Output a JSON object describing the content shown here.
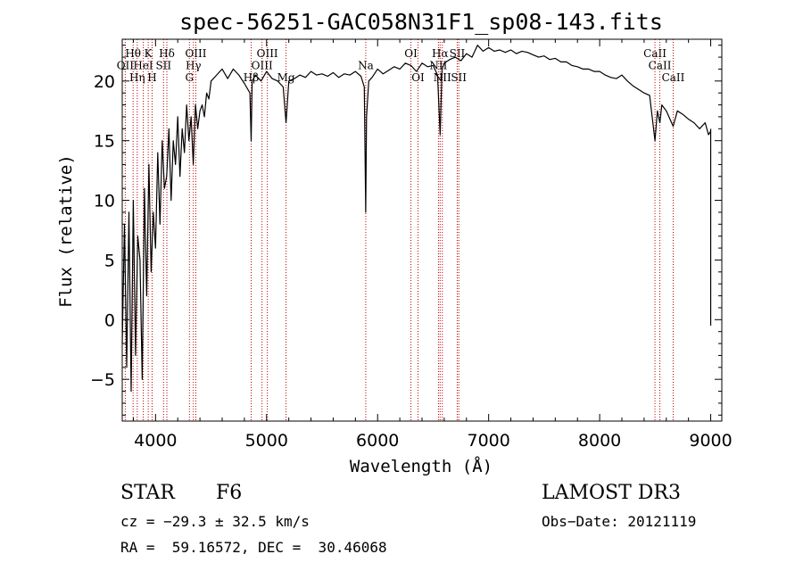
{
  "chart_data": {
    "type": "line",
    "title": "spec-56251-GAC058N31F1_sp08-143.fits",
    "xlabel": "Wavelength (Å)",
    "ylabel": "Flux (relative)",
    "xlim": [
      3700,
      9100
    ],
    "ylim": [
      -8.5,
      23.5
    ],
    "xticks": [
      "4000",
      "5000",
      "6000",
      "7000",
      "8000",
      "9000"
    ],
    "yticks": [
      "−5",
      "0",
      "5",
      "10",
      "15",
      "20"
    ],
    "xtick_values": [
      4000,
      5000,
      6000,
      7000,
      8000,
      9000
    ],
    "ytick_values": [
      -5,
      0,
      5,
      10,
      15,
      20
    ],
    "series": [
      {
        "name": "spectrum",
        "x": [
          3700,
          3720,
          3740,
          3760,
          3780,
          3800,
          3820,
          3840,
          3860,
          3880,
          3900,
          3920,
          3940,
          3960,
          3980,
          4000,
          4020,
          4040,
          4060,
          4080,
          4100,
          4120,
          4140,
          4160,
          4180,
          4200,
          4220,
          4240,
          4260,
          4280,
          4300,
          4320,
          4340,
          4360,
          4380,
          4400,
          4420,
          4440,
          4460,
          4480,
          4500,
          4550,
          4600,
          4650,
          4700,
          4750,
          4800,
          4850,
          4861,
          4870,
          4900,
          4950,
          5000,
          5050,
          5100,
          5150,
          5175,
          5200,
          5250,
          5300,
          5350,
          5400,
          5450,
          5500,
          5550,
          5600,
          5650,
          5700,
          5750,
          5800,
          5850,
          5880,
          5893,
          5900,
          5920,
          5950,
          6000,
          6050,
          6100,
          6150,
          6200,
          6250,
          6300,
          6350,
          6400,
          6450,
          6500,
          6540,
          6563,
          6580,
          6600,
          6650,
          6700,
          6750,
          6800,
          6850,
          6900,
          6950,
          7000,
          7050,
          7100,
          7150,
          7200,
          7250,
          7300,
          7350,
          7400,
          7450,
          7500,
          7550,
          7600,
          7650,
          7700,
          7750,
          7800,
          7850,
          7900,
          7950,
          8000,
          8050,
          8100,
          8150,
          8200,
          8250,
          8300,
          8350,
          8400,
          8450,
          8498,
          8520,
          8542,
          8560,
          8600,
          8662,
          8700,
          8750,
          8800,
          8850,
          8900,
          8950,
          8980,
          9000
        ],
        "y": [
          -2,
          8,
          -4,
          9,
          -6,
          10,
          -3,
          7,
          5,
          -5,
          11,
          2,
          13,
          4,
          9,
          6,
          14,
          8,
          15,
          11,
          12,
          16,
          10,
          15,
          13,
          17,
          12,
          16,
          14,
          18,
          15,
          17,
          13,
          18,
          16,
          17.5,
          18,
          17,
          19,
          18.5,
          20,
          20.5,
          21,
          20.2,
          21,
          20.5,
          19.8,
          19,
          15,
          20,
          20.5,
          20,
          20.8,
          20.2,
          20,
          19.5,
          16.5,
          20,
          20.2,
          20.5,
          20.3,
          20.8,
          20.5,
          20.6,
          20.4,
          20.7,
          20.3,
          20.6,
          20.5,
          20.8,
          20.4,
          19.5,
          9,
          17,
          20,
          20.3,
          21,
          20.6,
          20.9,
          21.2,
          21,
          21.5,
          21.3,
          20.8,
          21.5,
          21.2,
          21.3,
          20.5,
          15.5,
          21,
          21.5,
          21.8,
          22,
          21.7,
          22.3,
          22,
          23,
          22.5,
          22.8,
          22.5,
          22.6,
          22.4,
          22.6,
          22.3,
          22.5,
          22.4,
          22.2,
          22,
          22.1,
          21.8,
          21.9,
          21.6,
          21.6,
          21.3,
          21.2,
          21,
          21,
          20.8,
          20.8,
          20.5,
          20.3,
          20.2,
          20.5,
          20,
          19.6,
          19.3,
          19,
          18.8,
          15,
          17.5,
          16.5,
          18,
          17.5,
          16.2,
          17.5,
          17.2,
          16.8,
          16.5,
          16,
          16.5,
          15.5,
          15.8
        ],
        "tail_x": 9000,
        "tail_y": [
          16,
          -0.5
        ]
      }
    ],
    "lines": [
      {
        "name": "Hθ",
        "x": 3798,
        "label_y": 22
      },
      {
        "name": "OII",
        "x": 3727,
        "label_y": 21
      },
      {
        "name": "Hη",
        "x": 3835,
        "label_y": 20
      },
      {
        "name": "K",
        "x": 3934,
        "label_y": 22
      },
      {
        "name": "HeI",
        "x": 3889,
        "label_y": 21
      },
      {
        "name": "H",
        "x": 3969,
        "label_y": 20
      },
      {
        "name": "Hδ",
        "x": 4102,
        "label_y": 22
      },
      {
        "name": "SII",
        "x": 4072,
        "label_y": 21
      },
      {
        "name": "OIII",
        "x": 4363,
        "label_y": 22
      },
      {
        "name": "Hγ",
        "x": 4341,
        "label_y": 21
      },
      {
        "name": "G",
        "x": 4305,
        "label_y": 20
      },
      {
        "name": "OIII",
        "x": 5007,
        "label_y": 22
      },
      {
        "name": "OIII",
        "x": 4959,
        "label_y": 21
      },
      {
        "name": "Hβ",
        "x": 4861,
        "label_y": 20
      },
      {
        "name": "Mg",
        "x": 5175,
        "label_y": 20
      },
      {
        "name": "Na",
        "x": 5893,
        "label_y": 21
      },
      {
        "name": "OI",
        "x": 6300,
        "label_y": 22
      },
      {
        "name": "OI",
        "x": 6364,
        "label_y": 20
      },
      {
        "name": "Hα",
        "x": 6563,
        "label_y": 22
      },
      {
        "name": "NII",
        "x": 6548,
        "label_y": 21
      },
      {
        "name": "NII",
        "x": 6583,
        "label_y": 20
      },
      {
        "name": "SII",
        "x": 6717,
        "label_y": 22
      },
      {
        "name": "SII",
        "x": 6731,
        "label_y": 20
      },
      {
        "name": "CaII",
        "x": 8498,
        "label_y": 22
      },
      {
        "name": "CaII",
        "x": 8542,
        "label_y": 21
      },
      {
        "name": "CaII",
        "x": 8662,
        "label_y": 20
      }
    ]
  },
  "info": {
    "object_type": "STAR",
    "subclass": "F6",
    "survey": "LAMOST DR3",
    "cz": "cz = −29.3 ± 32.5 km/s",
    "obs_date": "Obs−Date: 20121119",
    "coords": "RA =  59.16572, DEC =  30.46068"
  },
  "colors": {
    "line_marker": "#c00000",
    "spectrum": "#000000"
  }
}
